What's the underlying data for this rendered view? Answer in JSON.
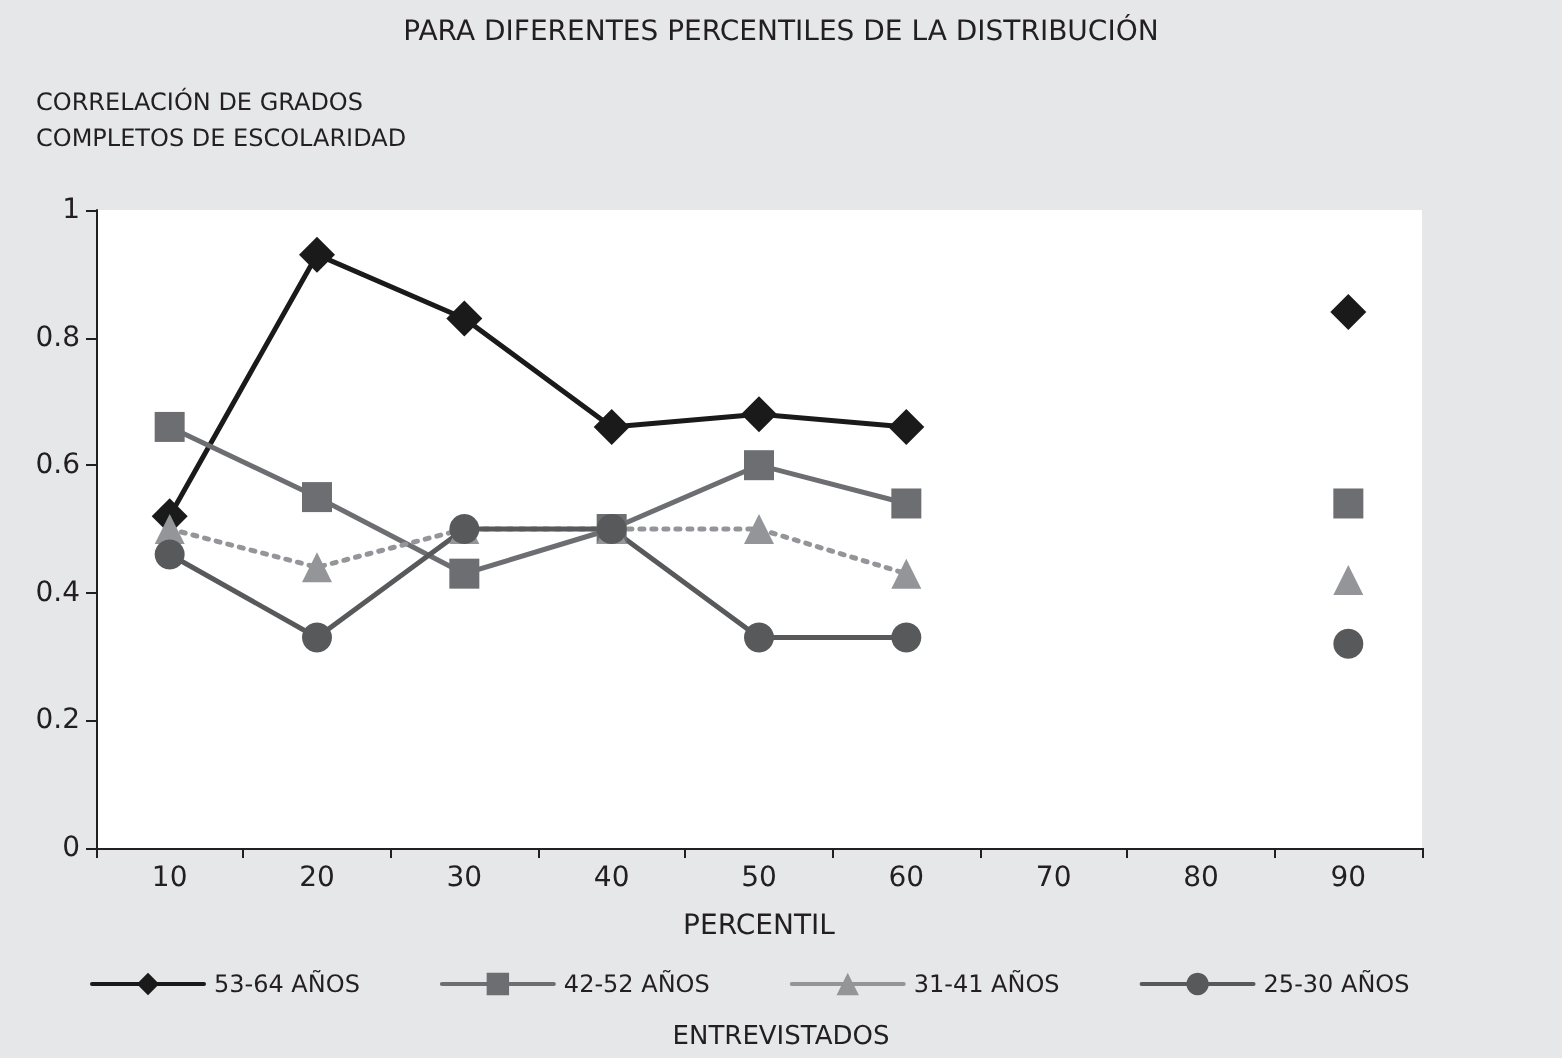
{
  "chart_data": {
    "type": "line",
    "title": "PARA DIFERENTES PERCENTILES DE LA DISTRIBUCIÓN",
    "ylabel": "CORRELACIÓN DE GRADOS COMPLETOS DE ESCOLARIDAD",
    "xlabel": "PERCENTIL",
    "legend_title": "ENTREVISTADOS",
    "categories": [
      "10",
      "20",
      "30",
      "40",
      "50",
      "60",
      "70",
      "80",
      "90"
    ],
    "series": [
      {
        "name": "53-64 AÑOS",
        "color": "#1a1a1a",
        "marker": "diamond",
        "line_style": "solid",
        "values": [
          0.52,
          0.93,
          0.83,
          0.66,
          0.68,
          0.66,
          null,
          null,
          0.84
        ]
      },
      {
        "name": "42-52 AÑOS",
        "color": "#6d6e71",
        "marker": "square",
        "line_style": "solid",
        "values": [
          0.66,
          0.55,
          0.43,
          0.5,
          0.6,
          0.54,
          null,
          null,
          0.54
        ]
      },
      {
        "name": "31-41 AÑOS",
        "color": "#939598",
        "marker": "triangle",
        "line_style": "dotted",
        "values": [
          0.5,
          0.44,
          0.5,
          0.5,
          0.5,
          0.43,
          null,
          null,
          0.42
        ]
      },
      {
        "name": "25-30 AÑOS",
        "color": "#58595b",
        "marker": "circle",
        "line_style": "solid",
        "values": [
          0.46,
          0.33,
          0.5,
          0.5,
          0.33,
          0.33,
          null,
          null,
          0.32
        ]
      }
    ],
    "ylim": [
      0,
      1
    ],
    "yticks": [
      0,
      0.2,
      0.4,
      0.6,
      0.8,
      1
    ],
    "grid": false,
    "legend": "bottom"
  }
}
